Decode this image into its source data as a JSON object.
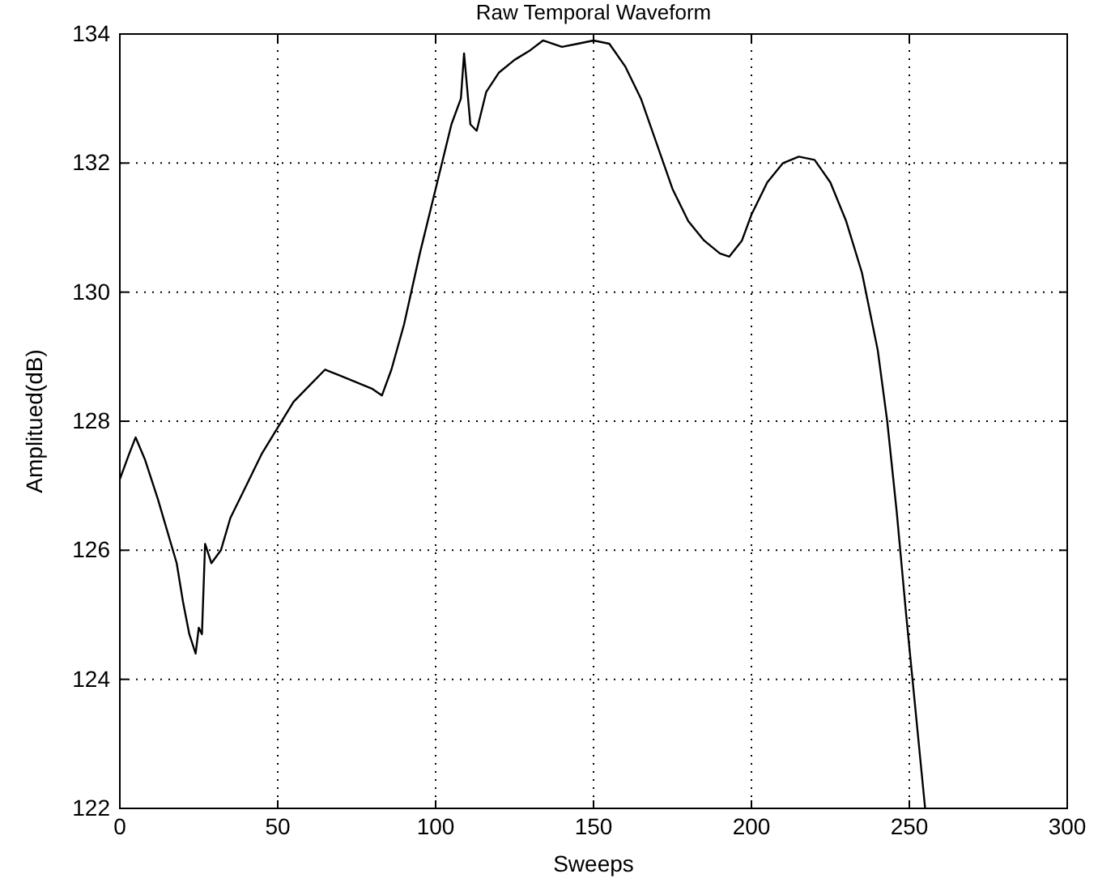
{
  "chart_data": {
    "type": "line",
    "title": "Raw Temporal Waveform",
    "xlabel": "Sweeps",
    "ylabel": "Amplitued(dB)",
    "x": [
      0,
      3,
      5,
      8,
      12,
      15,
      18,
      20,
      22,
      24,
      25,
      26,
      27,
      29,
      32,
      35,
      40,
      45,
      50,
      55,
      60,
      65,
      70,
      75,
      80,
      83,
      86,
      90,
      95,
      100,
      105,
      108,
      109,
      111,
      113,
      116,
      120,
      125,
      130,
      134,
      140,
      145,
      150,
      155,
      160,
      165,
      170,
      175,
      180,
      185,
      190,
      193,
      197,
      200,
      205,
      210,
      215,
      220,
      225,
      230,
      235,
      240,
      243,
      246,
      249,
      251,
      253,
      255
    ],
    "series": [
      {
        "color": "#000000",
        "values": [
          127.1,
          127.5,
          127.75,
          127.4,
          126.8,
          126.3,
          125.8,
          125.2,
          124.7,
          124.4,
          124.8,
          124.7,
          126.1,
          125.8,
          126.0,
          126.5,
          127.0,
          127.5,
          127.9,
          128.3,
          128.55,
          128.8,
          128.7,
          128.6,
          128.5,
          128.4,
          128.8,
          129.5,
          130.6,
          131.6,
          132.6,
          133.0,
          133.7,
          132.6,
          132.5,
          133.1,
          133.4,
          133.6,
          133.75,
          133.9,
          133.8,
          133.85,
          133.9,
          133.85,
          133.5,
          133.0,
          132.3,
          131.6,
          131.1,
          130.8,
          130.6,
          130.55,
          130.8,
          131.2,
          131.7,
          132.0,
          132.1,
          132.05,
          131.7,
          131.1,
          130.3,
          129.1,
          128.0,
          126.6,
          125.0,
          124.0,
          123.0,
          122.0
        ]
      }
    ],
    "xlim": [
      0,
      300
    ],
    "ylim": [
      122,
      134
    ],
    "xticks": [
      0,
      50,
      100,
      150,
      200,
      250,
      300
    ],
    "yticks": [
      122,
      124,
      126,
      128,
      130,
      132,
      134
    ],
    "grid": true,
    "marker": "none",
    "line_style": "solid"
  }
}
